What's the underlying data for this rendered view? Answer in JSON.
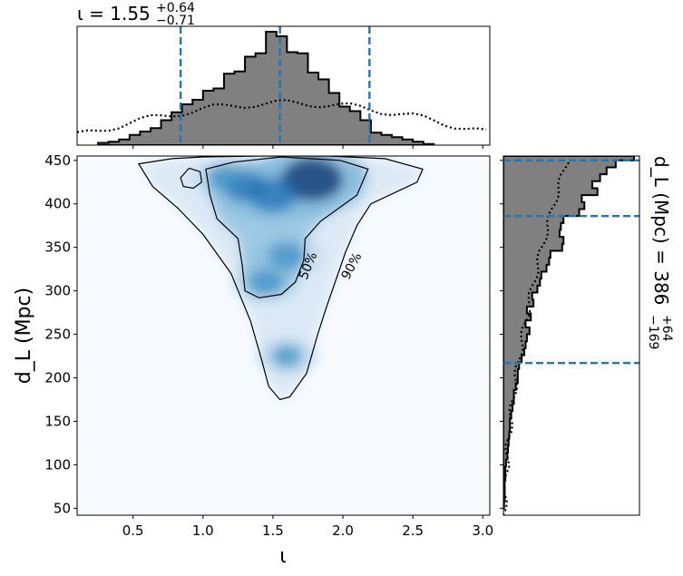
{
  "chart_data": [
    {
      "id": "top-marginal",
      "type": "histogram",
      "title": {
        "prefix": "ι = 1.55",
        "sup": "+0.64",
        "sub": "−0.71"
      },
      "xlim": [
        0.1,
        3.05
      ],
      "bin_edges": [
        0.25,
        0.325,
        0.4,
        0.475,
        0.55,
        0.625,
        0.7,
        0.775,
        0.85,
        0.925,
        1.0,
        1.075,
        1.15,
        1.225,
        1.3,
        1.375,
        1.45,
        1.525,
        1.6,
        1.675,
        1.75,
        1.825,
        1.9,
        1.975,
        2.05,
        2.125,
        2.2,
        2.275,
        2.35,
        2.425,
        2.5,
        2.575,
        2.65
      ],
      "posterior": [
        0.02,
        0.03,
        0.05,
        0.09,
        0.12,
        0.15,
        0.22,
        0.29,
        0.36,
        0.4,
        0.48,
        0.5,
        0.63,
        0.65,
        0.78,
        0.81,
        1.0,
        0.96,
        0.82,
        0.81,
        0.64,
        0.58,
        0.46,
        0.34,
        0.3,
        0.22,
        0.11,
        0.09,
        0.07,
        0.05,
        0.03,
        0.01
      ],
      "prior_line": "dotted",
      "quantile_lines": [
        0.84,
        1.55,
        2.19
      ]
    },
    {
      "id": "joint",
      "type": "heatmap",
      "xlabel": "ι",
      "ylabel": "d_L (Mpc)",
      "xlim": [
        0.1,
        3.05
      ],
      "ylim": [
        42,
        455
      ],
      "xticks": [
        "0.5",
        "1.0",
        "1.5",
        "2.0",
        "2.5",
        "3.0"
      ],
      "yticks": [
        "50",
        "100",
        "150",
        "200",
        "250",
        "300",
        "350",
        "400",
        "450"
      ],
      "density_peaks": [
        {
          "x": 1.78,
          "y": 428,
          "amp": 1.0
        },
        {
          "x": 1.5,
          "y": 410,
          "amp": 0.7
        },
        {
          "x": 1.3,
          "y": 420,
          "amp": 0.55
        },
        {
          "x": 1.6,
          "y": 340,
          "amp": 0.45
        },
        {
          "x": 1.45,
          "y": 310,
          "amp": 0.4
        },
        {
          "x": 1.6,
          "y": 225,
          "amp": 0.3
        },
        {
          "x": 1.15,
          "y": 430,
          "amp": 0.35
        }
      ],
      "contours": [
        {
          "label": "50%",
          "points": [
            [
              1.22,
              448
            ],
            [
              1.56,
              454
            ],
            [
              1.98,
              450
            ],
            [
              2.18,
              440
            ],
            [
              2.1,
              410
            ],
            [
              1.84,
              380
            ],
            [
              1.73,
              360
            ],
            [
              1.72,
              335
            ],
            [
              1.66,
              310
            ],
            [
              1.56,
              296
            ],
            [
              1.4,
              292
            ],
            [
              1.3,
              300
            ],
            [
              1.28,
              330
            ],
            [
              1.25,
              360
            ],
            [
              1.1,
              383
            ],
            [
              1.05,
              410
            ],
            [
              1.02,
              440
            ]
          ]
        },
        {
          "label": "50%",
          "points": [
            [
              0.84,
              430
            ],
            [
              0.9,
              441
            ],
            [
              0.98,
              437
            ],
            [
              0.99,
              425
            ],
            [
              0.93,
              418
            ],
            [
              0.86,
              420
            ]
          ]
        },
        {
          "label": "90%",
          "points": [
            [
              0.54,
              446
            ],
            [
              0.78,
              452
            ],
            [
              1.0,
              454
            ],
            [
              1.4,
              455
            ],
            [
              1.9,
              455
            ],
            [
              2.3,
              452
            ],
            [
              2.57,
              440
            ],
            [
              2.53,
              425
            ],
            [
              2.2,
              400
            ],
            [
              2.1,
              375
            ],
            [
              2.02,
              345
            ],
            [
              1.88,
              280
            ],
            [
              1.82,
              250
            ],
            [
              1.74,
              205
            ],
            [
              1.62,
              178
            ],
            [
              1.55,
              175
            ],
            [
              1.47,
              190
            ],
            [
              1.42,
              220
            ],
            [
              1.34,
              265
            ],
            [
              1.2,
              320
            ],
            [
              1.0,
              365
            ],
            [
              0.82,
              395
            ],
            [
              0.64,
              420
            ]
          ]
        }
      ]
    },
    {
      "id": "right-marginal",
      "type": "histogram",
      "orientation": "horizontal",
      "title": {
        "prefix": "d_L (Mpc) = 386",
        "sup": "+64",
        "sub": "−169"
      },
      "ylim": [
        42,
        455
      ],
      "bin_edges": [
        50,
        58,
        66,
        74,
        82,
        90,
        98,
        106,
        114,
        122,
        130,
        138,
        146,
        154,
        162,
        170,
        178,
        186,
        194,
        202,
        210,
        218,
        226,
        234,
        242,
        250,
        258,
        266,
        274,
        282,
        290,
        298,
        306,
        314,
        322,
        330,
        338,
        346,
        354,
        362,
        370,
        378,
        386,
        394,
        402,
        410,
        418,
        426,
        434,
        442,
        450,
        455
      ],
      "posterior": [
        0.005,
        0.01,
        0.01,
        0.01,
        0.015,
        0.015,
        0.02,
        0.03,
        0.035,
        0.04,
        0.045,
        0.05,
        0.05,
        0.06,
        0.07,
        0.08,
        0.08,
        0.095,
        0.11,
        0.11,
        0.12,
        0.14,
        0.16,
        0.17,
        0.18,
        0.2,
        0.17,
        0.21,
        0.18,
        0.23,
        0.22,
        0.26,
        0.28,
        0.29,
        0.33,
        0.35,
        0.36,
        0.45,
        0.46,
        0.43,
        0.44,
        0.46,
        0.58,
        0.62,
        0.6,
        0.72,
        0.68,
        0.74,
        0.79,
        0.86,
        1.0
      ],
      "prior_line": "dotted",
      "quantile_lines": [
        217,
        386,
        450
      ]
    }
  ],
  "colors": {
    "quantile": "#1f77b4",
    "hist_fill": "#808080",
    "hist_edge": "#000000",
    "cmap": "Blues"
  }
}
